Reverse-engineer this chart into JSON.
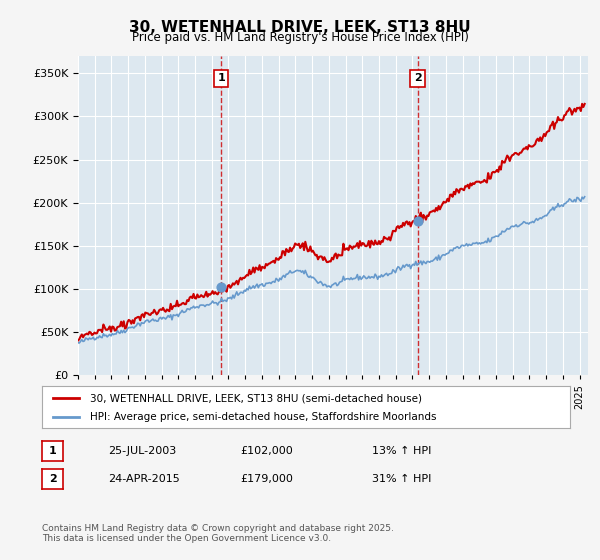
{
  "title": "30, WETENHALL DRIVE, LEEK, ST13 8HU",
  "subtitle": "Price paid vs. HM Land Registry's House Price Index (HPI)",
  "ylabel": "",
  "ylim": [
    0,
    370000
  ],
  "yticks": [
    0,
    50000,
    100000,
    150000,
    200000,
    250000,
    300000,
    350000
  ],
  "ytick_labels": [
    "£0",
    "£50K",
    "£100K",
    "£150K",
    "£200K",
    "£250K",
    "£300K",
    "£350K"
  ],
  "xlim_start": 1995.0,
  "xlim_end": 2025.5,
  "transaction1": {
    "date_num": 2003.56,
    "price": 102000,
    "label": "1",
    "date_str": "25-JUL-2003",
    "pct": "13%"
  },
  "transaction2": {
    "date_num": 2015.31,
    "price": 179000,
    "label": "2",
    "date_str": "24-APR-2015",
    "pct": "31%"
  },
  "house_line_color": "#cc0000",
  "hpi_line_color": "#6699cc",
  "vline_color": "#cc0000",
  "dot_color": "#6699cc",
  "background_color": "#dde8f0",
  "plot_bg_color": "#dde8f0",
  "grid_color": "#ffffff",
  "legend_label_house": "30, WETENHALL DRIVE, LEEK, ST13 8HU (semi-detached house)",
  "legend_label_hpi": "HPI: Average price, semi-detached house, Staffordshire Moorlands",
  "footer": "Contains HM Land Registry data © Crown copyright and database right 2025.\nThis data is licensed under the Open Government Licence v3.0.",
  "table_rows": [
    {
      "num": "1",
      "date": "25-JUL-2003",
      "price": "£102,000",
      "pct": "13% ↑ HPI"
    },
    {
      "num": "2",
      "date": "24-APR-2015",
      "price": "£179,000",
      "pct": "31% ↑ HPI"
    }
  ]
}
